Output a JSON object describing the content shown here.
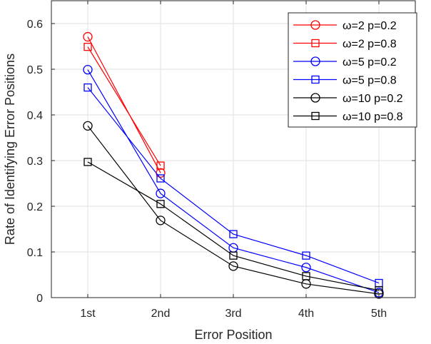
{
  "chart_data": {
    "type": "line",
    "title": "",
    "xlabel": "Error Position",
    "ylabel": "Rate of Identifying Error Positions",
    "categories": [
      "1st",
      "2nd",
      "3rd",
      "4th",
      "5th"
    ],
    "xlim": [
      0.5,
      5.5
    ],
    "ylim": [
      0,
      0.65
    ],
    "yticks": [
      0,
      0.1,
      0.2,
      0.3,
      0.4,
      0.5,
      0.6
    ],
    "ytick_labels": [
      "0",
      "0.1",
      "0.2",
      "0.3",
      "0.4",
      "0.5",
      "0.6"
    ],
    "grid": true,
    "legend_position": "upper right",
    "series": [
      {
        "name": "ω=2 p=0.2",
        "color": "#ff0000",
        "marker": "circle",
        "values": [
          0.571,
          0.273
        ]
      },
      {
        "name": "ω=2 p=0.8",
        "color": "#ff0000",
        "marker": "square",
        "values": [
          0.549,
          0.289
        ]
      },
      {
        "name": "ω=5 p=0.2",
        "color": "#0000ff",
        "marker": "circle",
        "values": [
          0.499,
          0.228,
          0.109,
          0.066,
          0.011
        ]
      },
      {
        "name": "ω=5 p=0.8",
        "color": "#0000ff",
        "marker": "square",
        "values": [
          0.46,
          0.261,
          0.139,
          0.092,
          0.032
        ]
      },
      {
        "name": "ω=10 p=0.2",
        "color": "#000000",
        "marker": "circle",
        "values": [
          0.376,
          0.169,
          0.069,
          0.03,
          0.008
        ]
      },
      {
        "name": "ω=10 p=0.8",
        "color": "#000000",
        "marker": "square",
        "values": [
          0.297,
          0.205,
          0.092,
          0.047,
          0.016
        ]
      }
    ]
  }
}
